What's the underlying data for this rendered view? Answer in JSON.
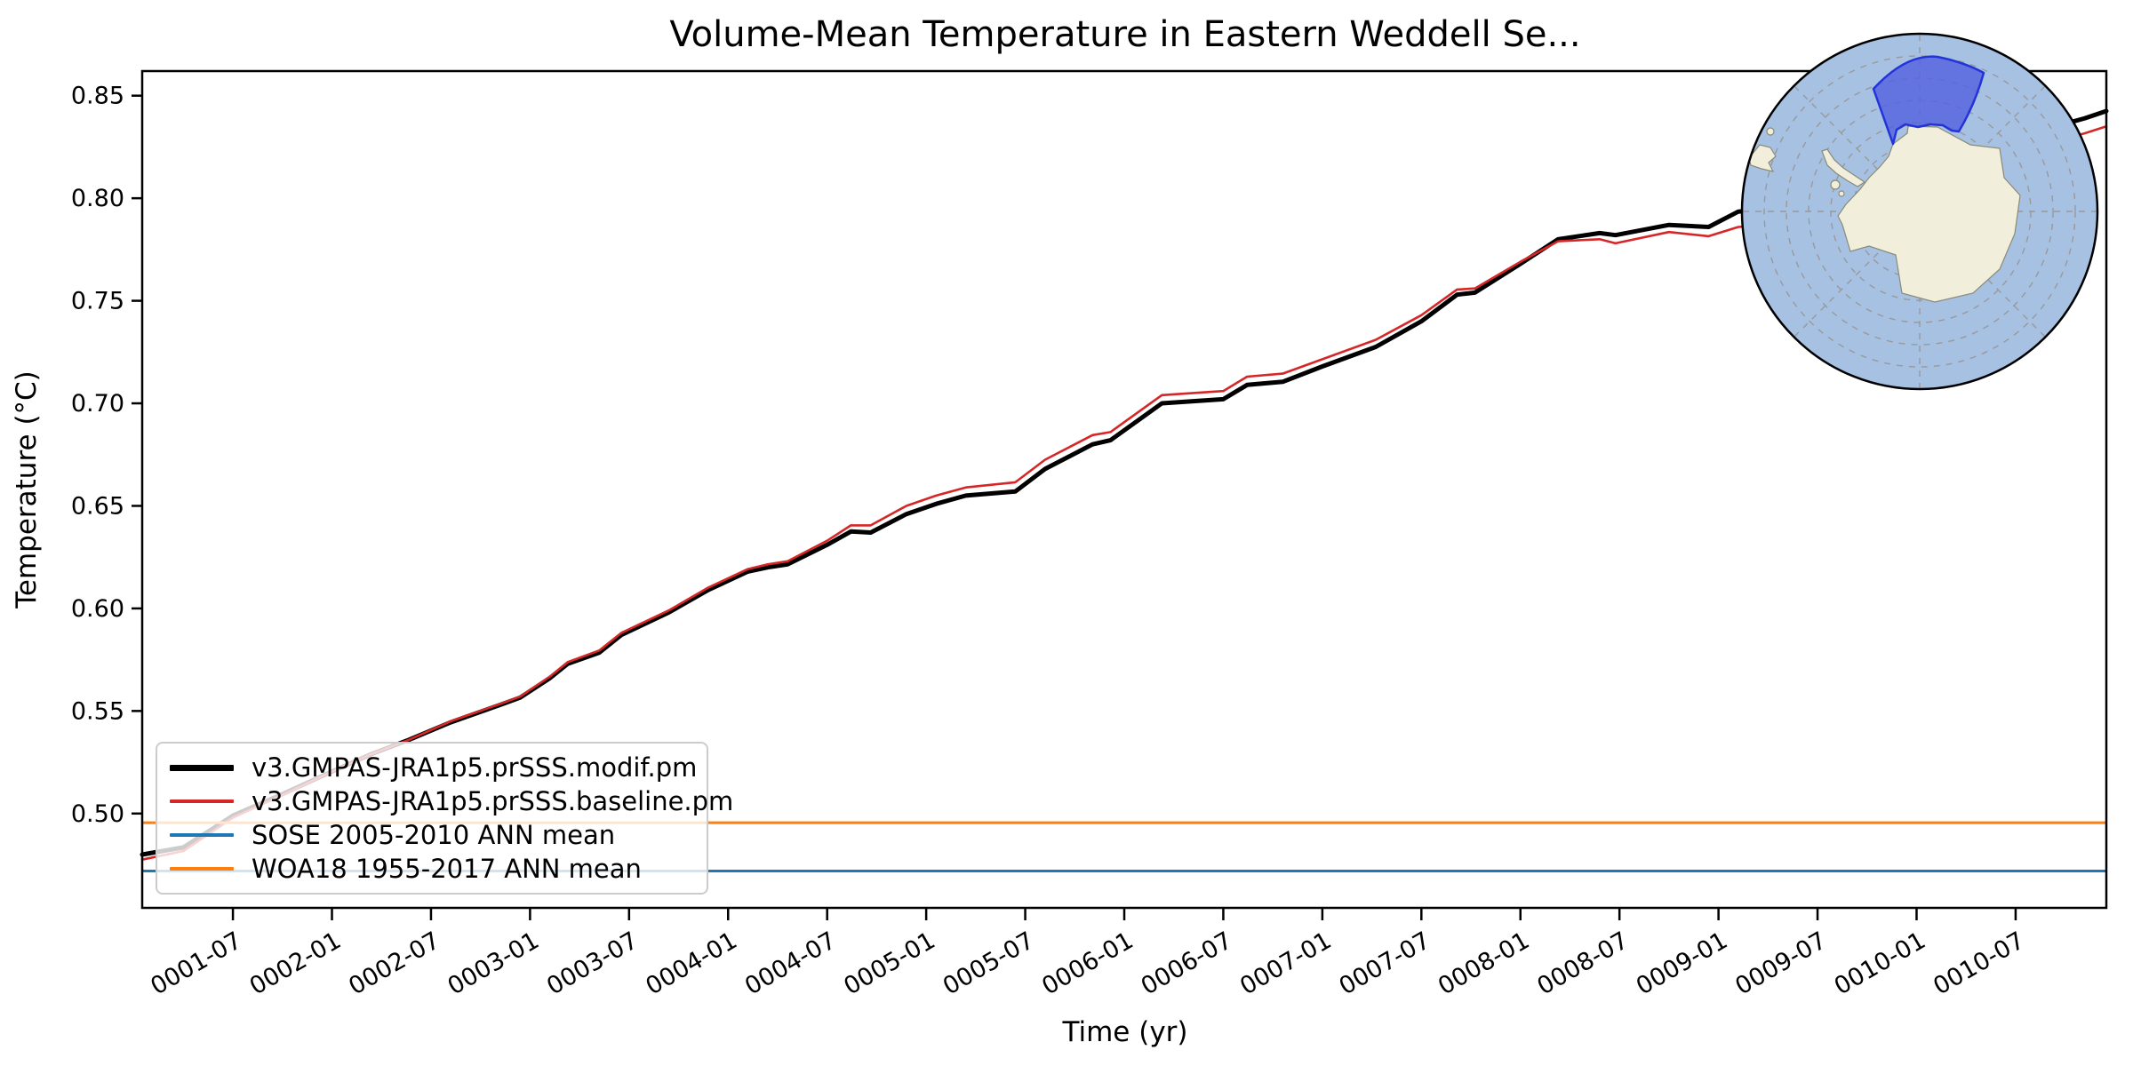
{
  "title": "Volume-Mean Temperature in Eastern Weddell Se...",
  "chart_data": {
    "type": "line",
    "title": "Volume-Mean Temperature in Eastern Weddell Se...",
    "xlabel": "Time (yr)",
    "ylabel": "Temperature (°C)",
    "xlim": [
      1.042,
      10.958
    ],
    "ylim": [
      0.454,
      0.862
    ],
    "grid": false,
    "legend_position": "lower left",
    "x_ticks": {
      "positions": [
        1.5,
        2.0,
        2.5,
        3.0,
        3.5,
        4.0,
        4.5,
        5.0,
        5.5,
        6.0,
        6.5,
        7.0,
        7.5,
        8.0,
        8.5,
        9.0,
        9.5,
        10.0,
        10.5
      ],
      "labels": [
        "0001-07",
        "0002-01",
        "0002-07",
        "0003-01",
        "0003-07",
        "0004-01",
        "0004-07",
        "0005-01",
        "0005-07",
        "0006-01",
        "0006-07",
        "0007-01",
        "0007-07",
        "0008-01",
        "0008-07",
        "0009-01",
        "0009-07",
        "0010-01",
        "0010-07"
      ],
      "rotation_deg": -30
    },
    "y_ticks": {
      "positions": [
        0.85,
        0.8,
        0.75,
        0.7,
        0.65,
        0.6,
        0.55,
        0.5
      ],
      "labels": [
        "0.85",
        "0.80",
        "0.75",
        "0.70",
        "0.65",
        "0.60",
        "0.55",
        "0.50"
      ]
    },
    "series": [
      {
        "name": "v3.GMPAS-JRA1p5.prSSS.modif.pm",
        "color": "#000000",
        "linewidth": 5,
        "x": [
          1.042,
          1.25,
          1.5,
          1.75,
          2.0,
          2.2,
          2.39,
          2.6,
          2.85,
          2.95,
          3.1,
          3.19,
          3.35,
          3.46,
          3.7,
          3.9,
          4.1,
          4.2,
          4.3,
          4.5,
          4.62,
          4.72,
          4.9,
          5.05,
          5.2,
          5.45,
          5.6,
          5.84,
          5.93,
          6.19,
          6.5,
          6.62,
          6.8,
          7.0,
          7.27,
          7.5,
          7.68,
          7.77,
          8.0,
          8.19,
          8.4,
          8.48,
          8.75,
          8.95,
          9.1,
          9.26,
          9.5,
          9.7,
          9.9,
          10.1,
          10.3,
          10.5,
          10.7,
          10.85,
          10.958
        ],
        "y": [
          0.48,
          0.4835,
          0.499,
          0.5095,
          0.5205,
          0.529,
          0.536,
          0.5445,
          0.553,
          0.5565,
          0.566,
          0.573,
          0.5785,
          0.587,
          0.598,
          0.609,
          0.618,
          0.62,
          0.6215,
          0.631,
          0.6375,
          0.637,
          0.646,
          0.651,
          0.655,
          0.657,
          0.668,
          0.68,
          0.682,
          0.7,
          0.702,
          0.709,
          0.7105,
          0.718,
          0.7275,
          0.74,
          0.753,
          0.754,
          0.768,
          0.78,
          0.783,
          0.782,
          0.787,
          0.786,
          0.7935,
          0.795,
          0.802,
          0.808,
          0.813,
          0.818,
          0.824,
          0.83,
          0.835,
          0.839,
          0.8425
        ]
      },
      {
        "name": "v3.GMPAS-JRA1p5.prSSS.baseline.pm",
        "color": "#d62728",
        "linewidth": 2.6,
        "x": [
          1.042,
          1.25,
          1.5,
          1.75,
          2.0,
          2.2,
          2.39,
          2.6,
          2.85,
          2.95,
          3.1,
          3.19,
          3.35,
          3.46,
          3.7,
          3.9,
          4.1,
          4.2,
          4.3,
          4.5,
          4.62,
          4.72,
          4.9,
          5.05,
          5.2,
          5.45,
          5.6,
          5.84,
          5.93,
          6.19,
          6.5,
          6.62,
          6.8,
          7.0,
          7.27,
          7.5,
          7.68,
          7.77,
          8.0,
          8.19,
          8.4,
          8.48,
          8.75,
          8.95,
          9.1,
          9.26,
          9.5,
          9.7,
          9.9,
          10.1,
          10.3,
          10.5,
          10.7,
          10.85,
          10.958
        ],
        "y": [
          0.4775,
          0.4817,
          0.498,
          0.509,
          0.5205,
          0.529,
          0.536,
          0.545,
          0.5535,
          0.557,
          0.5668,
          0.5738,
          0.5795,
          0.588,
          0.599,
          0.6102,
          0.6192,
          0.6215,
          0.623,
          0.633,
          0.6405,
          0.6405,
          0.65,
          0.655,
          0.659,
          0.6615,
          0.6725,
          0.6845,
          0.686,
          0.704,
          0.706,
          0.713,
          0.7145,
          0.7215,
          0.731,
          0.743,
          0.7555,
          0.756,
          0.769,
          0.779,
          0.78,
          0.778,
          0.7835,
          0.7815,
          0.786,
          0.787,
          0.7945,
          0.801,
          0.806,
          0.811,
          0.817,
          0.823,
          0.8278,
          0.8317,
          0.835
        ]
      },
      {
        "name": "SOSE 2005-2010 ANN mean",
        "color": "#1f77b4",
        "linewidth": 3,
        "hline": 0.472
      },
      {
        "name": "WOA18 1955-2017 ANN mean",
        "color": "#ff7f0e",
        "linewidth": 3,
        "hline": 0.4955
      }
    ]
  },
  "inset_map": {
    "description": "south-polar-stereographic-inset",
    "ocean_color": "#a7c1e3",
    "land_color": "#f1eedb",
    "coast_color": "#8a8a78",
    "graticule_color": "#999999",
    "region_fill": "#4f5fe0",
    "region_edge": "#2433d9",
    "outline_color": "#000000"
  }
}
